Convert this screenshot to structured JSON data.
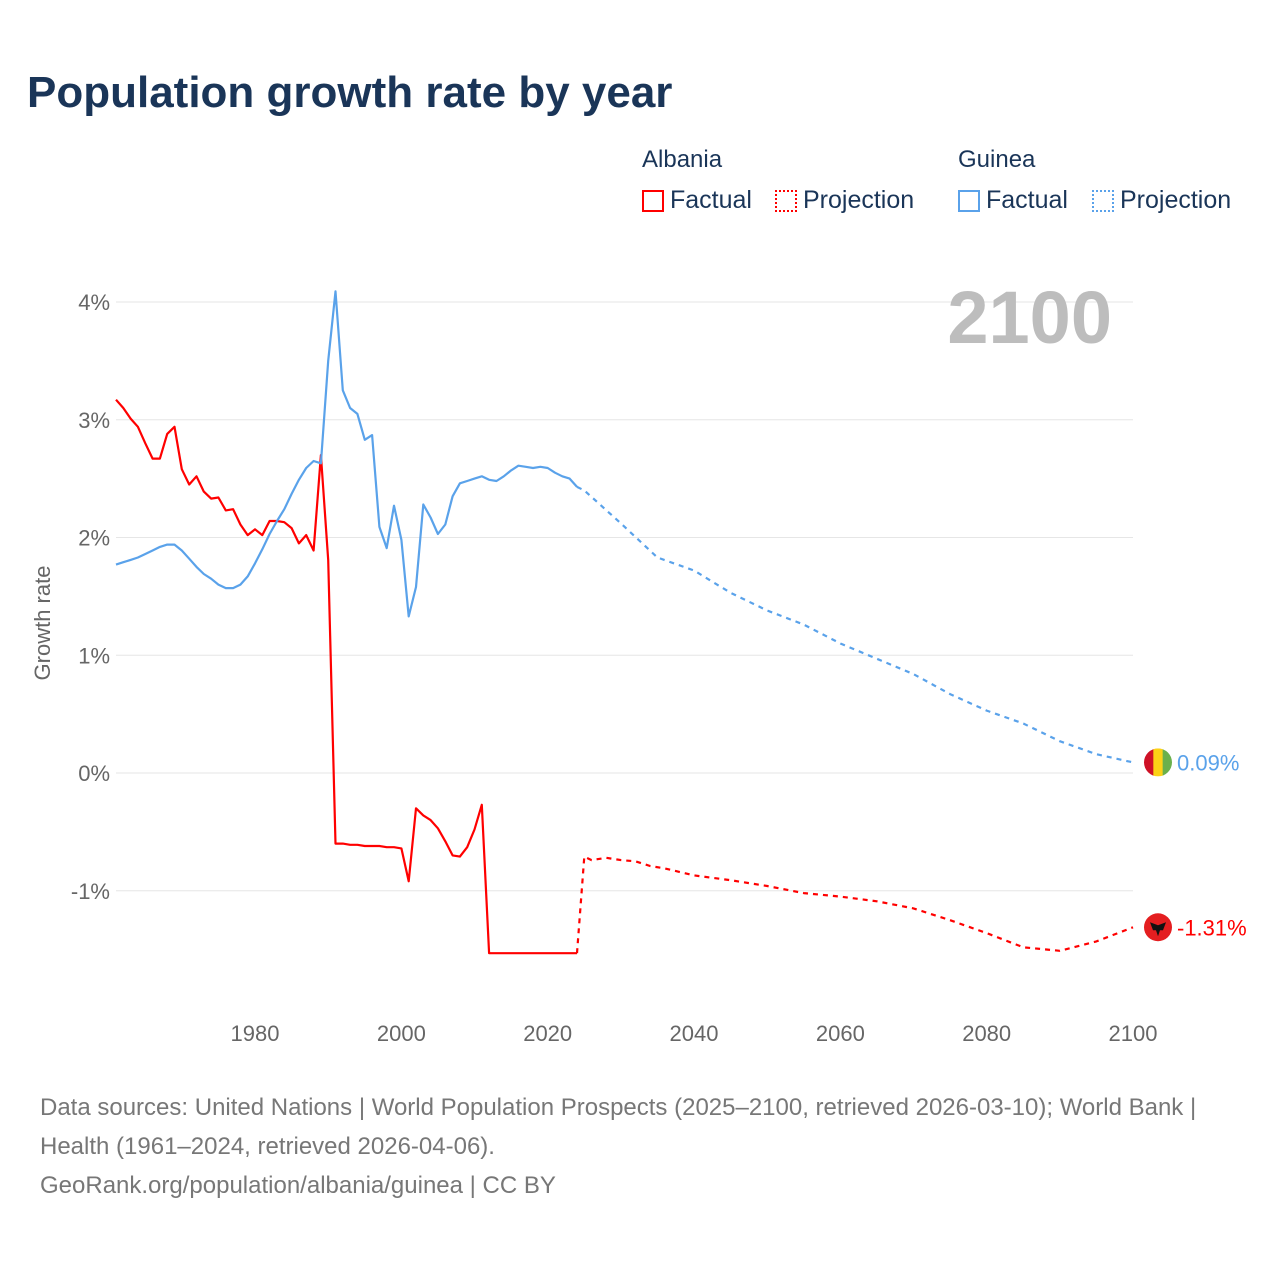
{
  "title": "Population growth rate by year",
  "legend": {
    "groups": [
      {
        "name": "Albania",
        "factual": "Factual",
        "projection": "Projection",
        "color": "#ff0000"
      },
      {
        "name": "Guinea",
        "factual": "Factual",
        "projection": "Projection",
        "color": "#5aa2ea"
      }
    ]
  },
  "current_year": "2100",
  "footer": {
    "line1": "Data sources: United Nations | World Population Prospects (2025–2100, retrieved 2026-03-10); World Bank | Health (1961–2024, retrieved 2026-04-06).",
    "line2": "GeoRank.org/population/albania/guinea | CC BY"
  },
  "chart_data": {
    "type": "line",
    "title": "Population growth rate by year",
    "ylabel": "Growth rate",
    "xlabel": "",
    "xlim": [
      1961,
      2100
    ],
    "ylim": [
      -2,
      4.5
    ],
    "xticks": [
      1980,
      2000,
      2020,
      2040,
      2060,
      2080,
      2100
    ],
    "yticks": [
      {
        "v": 4,
        "label": "4%"
      },
      {
        "v": 3,
        "label": "3%"
      },
      {
        "v": 2,
        "label": "2%"
      },
      {
        "v": 1,
        "label": "1%"
      },
      {
        "v": 0,
        "label": "0%"
      },
      {
        "v": -1,
        "label": "-1%"
      }
    ],
    "grid": true,
    "series": [
      {
        "name": "Albania Factual",
        "color": "#ff0000",
        "dashed": false,
        "start": 1961,
        "values": [
          3.17,
          3.1,
          3.01,
          2.94,
          2.8,
          2.67,
          2.67,
          2.88,
          2.94,
          2.58,
          2.45,
          2.52,
          2.39,
          2.33,
          2.34,
          2.23,
          2.24,
          2.11,
          2.02,
          2.07,
          2.02,
          2.14,
          2.14,
          2.13,
          2.08,
          1.95,
          2.02,
          1.89,
          2.7,
          1.81,
          -0.6,
          -0.6,
          -0.61,
          -0.61,
          -0.62,
          -0.62,
          -0.62,
          -0.63,
          -0.63,
          -0.64,
          -0.92,
          -0.3,
          -0.36,
          -0.4,
          -0.47,
          -0.58,
          -0.7,
          -0.71,
          -0.63,
          -0.48,
          -0.27,
          -1.53,
          -1.53,
          -1.53,
          -1.53,
          -1.53,
          -1.53,
          -1.53,
          -1.53,
          -1.53,
          -1.53,
          -1.53,
          -1.53,
          -1.53
        ]
      },
      {
        "name": "Albania Projection",
        "color": "#ff0000",
        "dashed": true,
        "x": [
          2024,
          2025,
          2026,
          2028,
          2030,
          2032,
          2034,
          2036,
          2038,
          2040,
          2045,
          2050,
          2055,
          2060,
          2065,
          2070,
          2075,
          2080,
          2085,
          2090,
          2095,
          2100
        ],
        "values": [
          -1.53,
          -0.71,
          -0.74,
          -0.72,
          -0.74,
          -0.75,
          -0.79,
          -0.81,
          -0.84,
          -0.87,
          -0.91,
          -0.96,
          -1.02,
          -1.05,
          -1.09,
          -1.15,
          -1.25,
          -1.36,
          -1.48,
          -1.51,
          -1.43,
          -1.31
        ]
      },
      {
        "name": "Guinea Factual",
        "color": "#5aa2ea",
        "dashed": false,
        "start": 1961,
        "values": [
          1.77,
          1.79,
          1.81,
          1.83,
          1.86,
          1.89,
          1.92,
          1.94,
          1.94,
          1.89,
          1.82,
          1.75,
          1.69,
          1.65,
          1.6,
          1.57,
          1.57,
          1.6,
          1.67,
          1.78,
          1.9,
          2.03,
          2.14,
          2.24,
          2.37,
          2.49,
          2.59,
          2.65,
          2.63,
          3.5,
          4.09,
          3.25,
          3.1,
          3.05,
          2.83,
          2.87,
          2.09,
          1.91,
          2.27,
          1.98,
          1.33,
          1.58,
          2.28,
          2.17,
          2.03,
          2.11,
          2.35,
          2.46,
          2.48,
          2.5,
          2.52,
          2.49,
          2.48,
          2.52,
          2.57,
          2.61,
          2.6,
          2.59,
          2.6,
          2.59,
          2.55,
          2.52,
          2.5,
          2.43
        ]
      },
      {
        "name": "Guinea Projection",
        "color": "#5aa2ea",
        "dashed": true,
        "x": [
          2024,
          2025,
          2030,
          2035,
          2040,
          2045,
          2050,
          2055,
          2060,
          2065,
          2070,
          2075,
          2080,
          2085,
          2090,
          2095,
          2100
        ],
        "values": [
          2.43,
          2.4,
          2.12,
          1.83,
          1.72,
          1.53,
          1.38,
          1.26,
          1.1,
          0.97,
          0.84,
          0.67,
          0.53,
          0.42,
          0.27,
          0.16,
          0.09
        ]
      }
    ],
    "end_labels": [
      {
        "country": "Guinea",
        "label": "0.09%",
        "color": "#5aa2ea",
        "value": 0.09
      },
      {
        "country": "Albania",
        "label": "-1.31%",
        "color": "#ff0000",
        "value": -1.31
      }
    ]
  }
}
